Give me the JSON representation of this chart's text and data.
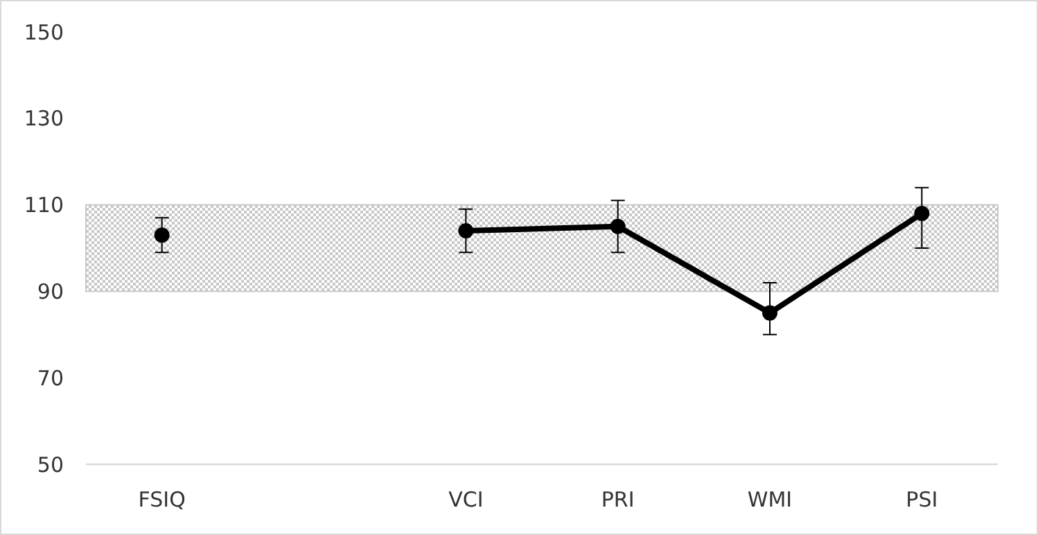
{
  "chart_data": {
    "type": "line",
    "categories": [
      "FSIQ",
      null,
      "VCI",
      "PRI",
      "WMI",
      "PSI"
    ],
    "series": [
      {
        "color": "#000000",
        "values": [
          103,
          null,
          104,
          105,
          85,
          108
        ],
        "errors": [
          [
            99,
            107
          ],
          null,
          [
            99,
            109
          ],
          [
            99,
            111
          ],
          [
            80,
            92
          ],
          [
            100,
            114
          ]
        ]
      }
    ],
    "ylim": [
      50,
      150
    ],
    "yticks": [
      50,
      70,
      90,
      110,
      130,
      150
    ],
    "grid": false,
    "marker": "circle",
    "line_style": "solid",
    "bands": [
      {
        "axis": "y",
        "from": 90,
        "to": 110,
        "color": "#c8c8c8"
      }
    ]
  }
}
